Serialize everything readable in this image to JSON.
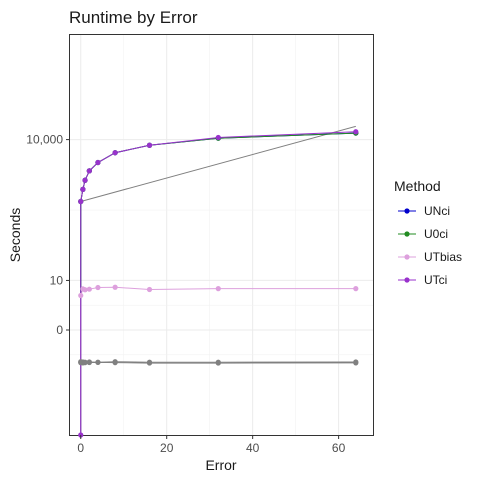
{
  "chart_data": {
    "type": "line",
    "title": "Runtime by Error",
    "xlabel": "Error",
    "ylabel": "Seconds",
    "xlim": [
      -2.5,
      68
    ],
    "x_ticks": [
      0,
      20,
      40,
      60
    ],
    "y_ticks": [
      {
        "label": "10,000",
        "value": 10000
      },
      {
        "label": "10",
        "value": 10
      },
      {
        "label": "0",
        "value": 0
      }
    ],
    "legend": {
      "title": "Method",
      "position": "right"
    },
    "series": [
      {
        "name": "UNci",
        "color": "#0000cc",
        "x": [
          0,
          0.5,
          1,
          2,
          4,
          8,
          16,
          32,
          64
        ],
        "y": [
          500,
          900,
          1400,
          2200,
          3300,
          5300,
          7600,
          10700,
          13700
        ]
      },
      {
        "name": "U0ci",
        "color": "#228b22",
        "x": [
          0,
          0.5,
          1,
          2,
          4,
          8,
          16,
          32,
          64
        ],
        "y": [
          500,
          900,
          1400,
          2200,
          3300,
          5300,
          7600,
          10700,
          13700
        ]
      },
      {
        "name": "UTbias",
        "color": "#dda0dd",
        "x": [
          0,
          0.5,
          1,
          2,
          4,
          8,
          16,
          32,
          64
        ],
        "y": [
          4.3,
          6.3,
          6.0,
          6.2,
          6.8,
          6.9,
          6.1,
          6.4,
          6.4
        ]
      },
      {
        "name": "UTci",
        "color": "#9932cc",
        "x": [
          0,
          0.5,
          1,
          2,
          4,
          8,
          16,
          32,
          64
        ],
        "y": [
          500,
          900,
          1400,
          2200,
          3300,
          5300,
          7600,
          11100,
          14600
        ]
      }
    ],
    "extra_series": [
      {
        "color": "#808080",
        "x": [
          0,
          0.5,
          1,
          2,
          4,
          8,
          16,
          32,
          64
        ],
        "y": [
          -3.65,
          -3.7,
          -3.75,
          -3.7,
          -3.75,
          -3.65,
          -3.75,
          -3.75,
          -3.7
        ]
      },
      {
        "color": "#808080",
        "x": [
          0,
          0.5,
          1,
          2,
          4,
          8,
          16,
          32,
          64
        ],
        "y": [
          -3.85,
          -3.9,
          -3.85,
          -3.82,
          -3.8,
          -3.85,
          -3.95,
          -3.95,
          -3.9
        ]
      },
      {
        "color": "#808080",
        "x": [
          0,
          64
        ],
        "y": [
          500,
          19000
        ]
      }
    ]
  }
}
